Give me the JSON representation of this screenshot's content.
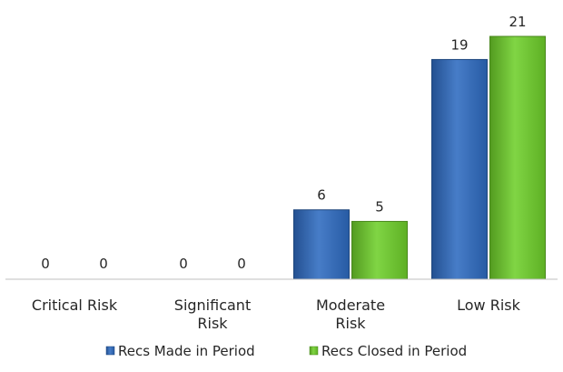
{
  "chart_data": {
    "type": "bar",
    "categories": [
      "Critical Risk",
      "Significant Risk",
      "Moderate Risk",
      "Low Risk"
    ],
    "category_lines": [
      [
        "Critical Risk"
      ],
      [
        "Significant",
        "Risk"
      ],
      [
        "Moderate",
        "Risk"
      ],
      [
        "Low Risk"
      ]
    ],
    "series": [
      {
        "name": "Recs Made in Period",
        "values": [
          0,
          0,
          6,
          19
        ],
        "color": "#2e6bc1"
      },
      {
        "name": "Recs Closed in Period",
        "values": [
          0,
          0,
          5,
          21
        ],
        "color": "#6fcf2a"
      }
    ],
    "ylim": [
      0,
      21
    ],
    "grid": false,
    "legend": "bottom",
    "title": "",
    "xlabel": "",
    "ylabel": ""
  }
}
